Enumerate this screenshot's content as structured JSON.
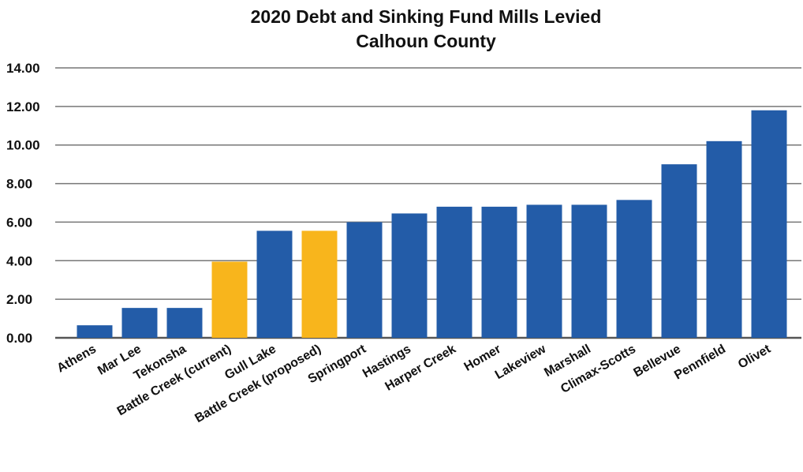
{
  "chart_data": {
    "type": "bar",
    "title": "2020 Debt and Sinking Fund Mills Levied",
    "subtitle": "Calhoun County",
    "xlabel": "",
    "ylabel": "",
    "ylim": [
      0,
      14
    ],
    "y_ticks": [
      "0.00",
      "2.00",
      "4.00",
      "6.00",
      "8.00",
      "10.00",
      "12.00",
      "14.00"
    ],
    "y_tick_values": [
      0,
      2,
      4,
      6,
      8,
      10,
      12,
      14
    ],
    "grid": true,
    "legend": "none",
    "categories": [
      "Athens",
      "Mar Lee",
      "Tekonsha",
      "Battle Creek (current)",
      "Gull Lake",
      "Battle Creek (proposed)",
      "Springport",
      "Hastings",
      "Harper Creek",
      "Homer",
      "Lakeview",
      "Marshall",
      "Climax-Scotts",
      "Bellevue",
      "Pennfield",
      "Olivet"
    ],
    "values": [
      0.65,
      1.55,
      1.55,
      3.95,
      5.55,
      5.55,
      6.0,
      6.45,
      6.8,
      6.8,
      6.9,
      6.9,
      7.15,
      9.0,
      10.2,
      11.8
    ],
    "highlight": [
      false,
      false,
      false,
      true,
      false,
      true,
      false,
      false,
      false,
      false,
      false,
      false,
      false,
      false,
      false,
      false
    ],
    "colors": {
      "bar": "#235ca8",
      "highlight_bar": "#f8b51c",
      "grid": "#777777",
      "text": "#111111"
    }
  }
}
